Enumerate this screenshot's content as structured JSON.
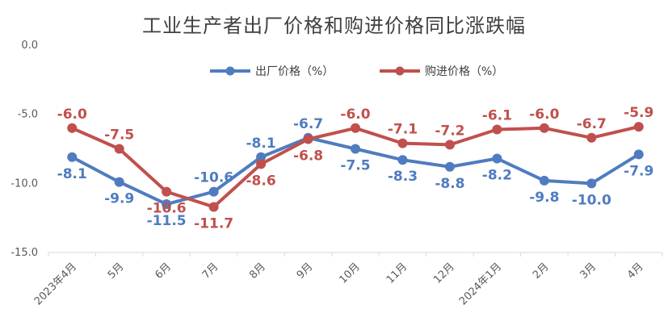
{
  "chart_data": {
    "type": "line",
    "title": "工业生产者出厂价格和购进价格同比涨跌幅",
    "xlabel": "",
    "ylabel": "",
    "categories": [
      "2023年4月",
      "5月",
      "6月",
      "7月",
      "8月",
      "9月",
      "10月",
      "11月",
      "12月",
      "2024年1月",
      "2月",
      "3月",
      "4月"
    ],
    "ylim": [
      -15.0,
      0.0
    ],
    "yticks": [
      "0.0",
      "-5.0",
      "-10.0",
      "-15.0"
    ],
    "grid": false,
    "legend_position": "top-center",
    "series": [
      {
        "name": "出厂价格（%）",
        "color": "#4F7CC0",
        "values": [
          -8.1,
          -9.9,
          -11.5,
          -10.6,
          -8.1,
          -6.7,
          -7.5,
          -8.3,
          -8.8,
          -8.2,
          -9.8,
          -10.0,
          -7.9
        ],
        "labels": [
          "-8.1",
          "-9.9",
          "-11.5",
          "-10.6",
          "-8.1",
          "-6.7",
          "-7.5",
          "-8.3",
          "-8.8",
          "-8.2",
          "-9.8",
          "-10.0",
          "-7.9"
        ]
      },
      {
        "name": "购进价格（%）",
        "color": "#C0504D",
        "values": [
          -6.0,
          -7.5,
          -10.6,
          -11.7,
          -8.6,
          -6.8,
          -6.0,
          -7.1,
          -7.2,
          -6.1,
          -6.0,
          -6.7,
          -5.9
        ],
        "labels": [
          "-6.0",
          "-7.5",
          "-10.6",
          "-11.7",
          "-8.6",
          "-6.8",
          "-6.0",
          "-7.1",
          "-7.2",
          "-6.1",
          "-6.0",
          "-6.7",
          "-5.9"
        ]
      }
    ]
  }
}
